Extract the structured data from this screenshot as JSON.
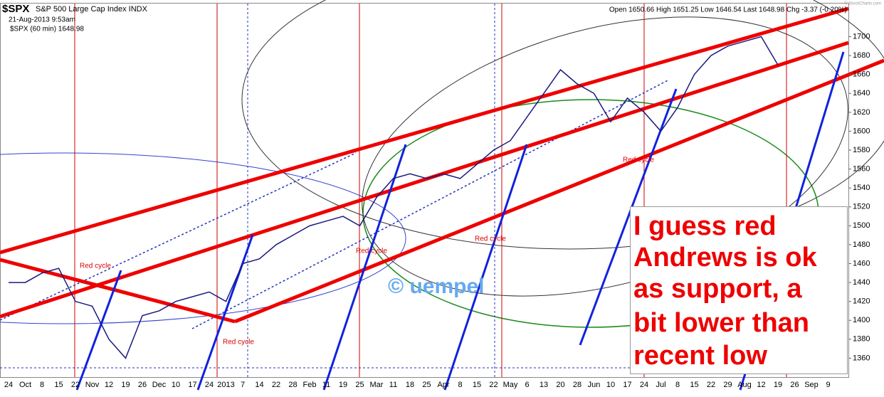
{
  "chart_data": {
    "type": "line",
    "title": "$SPX",
    "subtitle": "S&P 500 Large Cap Index INDX",
    "date": "21-Aug-2013 9:53am",
    "watermark": "© StockCharts.com",
    "ohlc": "Open 1650.66 High 1651.25 Low 1646.54 Last 1648.98 Chg -3.37 (-0.20%)",
    "series_legend": "$SPX (60 min) 1648.98",
    "categories": [
      "24",
      "Oct",
      "8",
      "15",
      "22",
      "Nov",
      "12",
      "19",
      "26",
      "Dec",
      "10",
      "17",
      "24",
      "2013",
      "7",
      "14",
      "22",
      "28",
      "Feb",
      "11",
      "19",
      "25",
      "Mar",
      "11",
      "18",
      "25",
      "Apr",
      "8",
      "15",
      "22",
      "May",
      "6",
      "13",
      "20",
      "28",
      "Jun",
      "10",
      "17",
      "24",
      "Jul",
      "8",
      "15",
      "22",
      "29",
      "Aug",
      "12",
      "19",
      "26",
      "Sep",
      "9"
    ],
    "series": [
      {
        "name": "$SPX",
        "color": "#1a1a80",
        "values": [
          1440,
          1440,
          1450,
          1455,
          1420,
          1415,
          1380,
          1360,
          1405,
          1410,
          1420,
          1425,
          1430,
          1420,
          1460,
          1465,
          1480,
          1490,
          1500,
          1505,
          1510,
          1500,
          1530,
          1550,
          1555,
          1550,
          1555,
          1550,
          1565,
          1580,
          1590,
          1615,
          1640,
          1665,
          1650,
          1640,
          1610,
          1635,
          1620,
          1600,
          1625,
          1660,
          1680,
          1690,
          1695,
          1700,
          1670,
          null,
          null,
          null
        ]
      }
    ],
    "ylim": [
      1340,
      1735
    ],
    "yticks": [
      1360,
      1380,
      1400,
      1420,
      1440,
      1460,
      1480,
      1500,
      1520,
      1540,
      1560,
      1580,
      1600,
      1620,
      1640,
      1660,
      1680,
      1700
    ],
    "grid": false,
    "annotations": [
      "Red cycle",
      "Red cycle",
      "Red cycle",
      "Red cycle",
      "Red cycle"
    ],
    "copyright": "© uempel",
    "note_lines": [
      "I guess red",
      "Andrews is ok",
      "as support, a",
      "bit lower than",
      "recent low"
    ]
  }
}
